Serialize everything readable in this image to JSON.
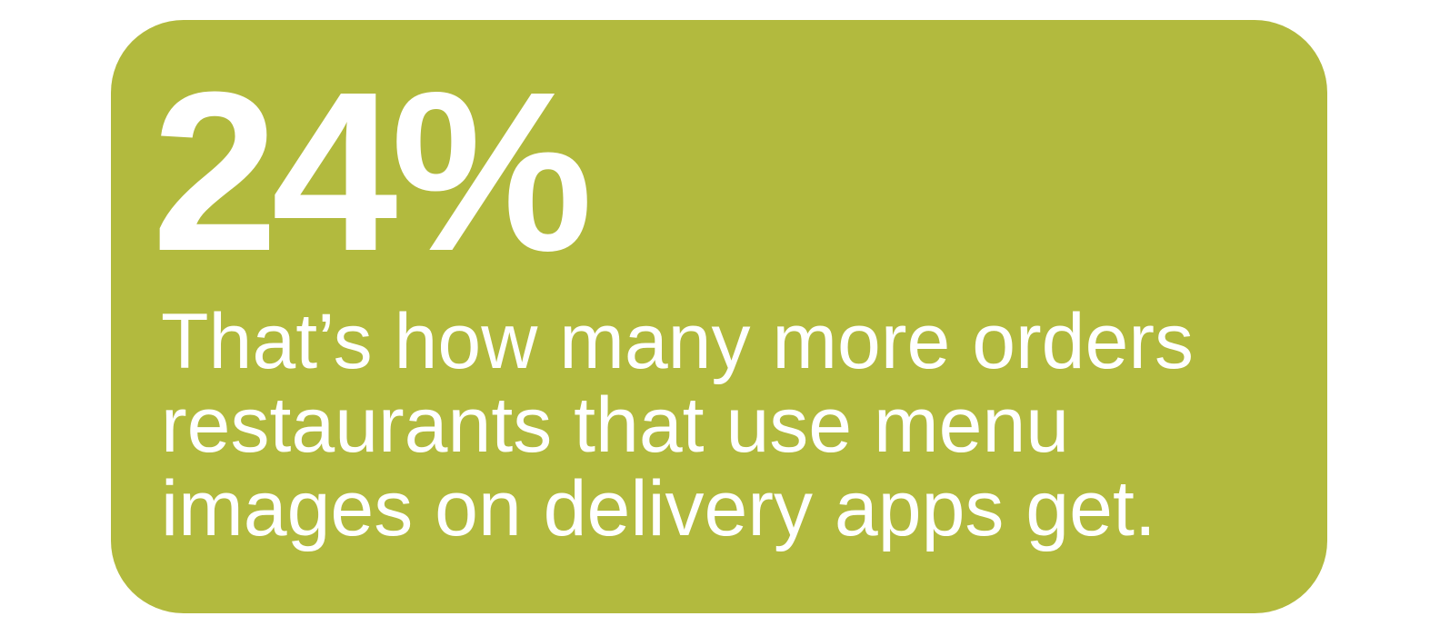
{
  "page": {
    "background_color": "#ffffff"
  },
  "stat_card": {
    "background_color": "#b2ba3e",
    "text_color": "#ffffff",
    "stat_value": "24%",
    "description_lines": [
      "That’s how many more orders",
      "restaurants that use menu",
      "images on delivery apps get."
    ]
  }
}
